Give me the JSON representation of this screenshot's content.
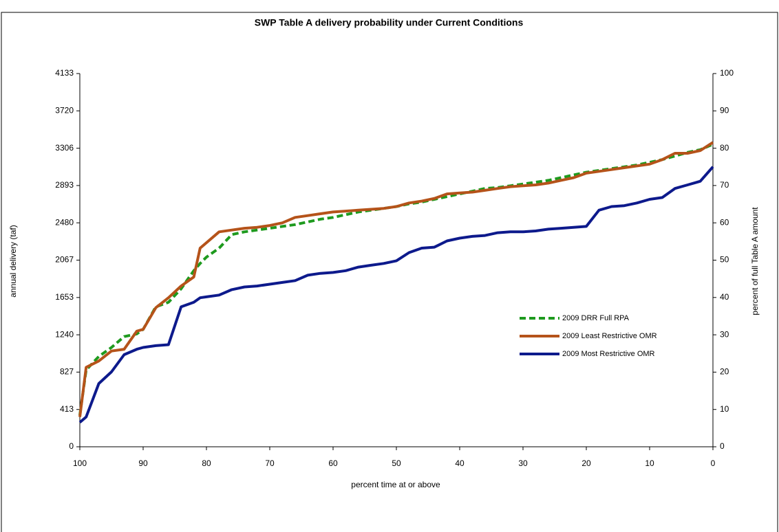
{
  "chart_data": {
    "type": "line",
    "title": "SWP Table A delivery probability under Current Conditions",
    "x_label": "percent time at or above",
    "y_label": "annual delivery (taf)",
    "y2_label": "percent of full Table A amount",
    "xlim": [
      100,
      0
    ],
    "xticks": [
      100,
      90,
      80,
      70,
      60,
      50,
      40,
      30,
      20,
      10,
      0
    ],
    "ylim": [
      0,
      4133
    ],
    "yticks": [
      0,
      413,
      827,
      1240,
      1653,
      2067,
      2480,
      2893,
      3306,
      3720,
      4133
    ],
    "y2lim": [
      0,
      100
    ],
    "y2ticks": [
      0,
      10,
      20,
      30,
      40,
      50,
      60,
      70,
      80,
      90,
      100
    ],
    "legend": "right",
    "x": [
      100,
      99,
      97,
      95,
      93,
      91,
      90,
      88,
      86,
      84,
      82,
      81,
      80,
      78,
      76,
      74,
      72,
      70,
      68,
      66,
      64,
      62,
      60,
      58,
      56,
      54,
      52,
      50,
      48,
      46,
      44,
      42,
      40,
      38,
      36,
      34,
      32,
      30,
      28,
      26,
      24,
      22,
      20,
      18,
      16,
      14,
      12,
      10,
      8,
      6,
      4,
      2,
      0
    ],
    "series": [
      {
        "name": "2009 DRR Full RPA",
        "color": "#1e9a1e",
        "dash": true,
        "values": [
          350,
          850,
          1000,
          1100,
          1220,
          1250,
          1300,
          1550,
          1600,
          1750,
          1950,
          2030,
          2100,
          2200,
          2350,
          2380,
          2400,
          2420,
          2440,
          2460,
          2490,
          2520,
          2540,
          2570,
          2600,
          2620,
          2640,
          2660,
          2690,
          2710,
          2740,
          2770,
          2800,
          2830,
          2860,
          2870,
          2890,
          2910,
          2930,
          2950,
          2980,
          3010,
          3040,
          3060,
          3080,
          3100,
          3120,
          3150,
          3180,
          3220,
          3260,
          3290,
          3350
        ]
      },
      {
        "name": "2009 Least Restrictive OMR",
        "color": "#b5531a",
        "dash": false,
        "values": [
          330,
          880,
          950,
          1060,
          1080,
          1280,
          1300,
          1540,
          1650,
          1780,
          1880,
          2200,
          2260,
          2380,
          2400,
          2420,
          2430,
          2450,
          2480,
          2540,
          2560,
          2580,
          2600,
          2610,
          2620,
          2630,
          2640,
          2660,
          2700,
          2720,
          2750,
          2800,
          2810,
          2820,
          2840,
          2860,
          2880,
          2890,
          2900,
          2920,
          2950,
          2980,
          3030,
          3050,
          3070,
          3090,
          3110,
          3130,
          3180,
          3250,
          3250,
          3280,
          3370
        ]
      },
      {
        "name": "2009 Most Restrictive OMR",
        "color": "#0d1a8c",
        "dash": false,
        "values": [
          270,
          330,
          700,
          830,
          1020,
          1080,
          1100,
          1120,
          1130,
          1550,
          1600,
          1650,
          1660,
          1680,
          1740,
          1770,
          1780,
          1800,
          1820,
          1840,
          1900,
          1920,
          1930,
          1950,
          1990,
          2010,
          2030,
          2060,
          2150,
          2200,
          2210,
          2280,
          2310,
          2330,
          2340,
          2370,
          2380,
          2380,
          2390,
          2410,
          2420,
          2430,
          2440,
          2620,
          2660,
          2670,
          2700,
          2740,
          2760,
          2860,
          2900,
          2940,
          3100
        ]
      }
    ]
  }
}
